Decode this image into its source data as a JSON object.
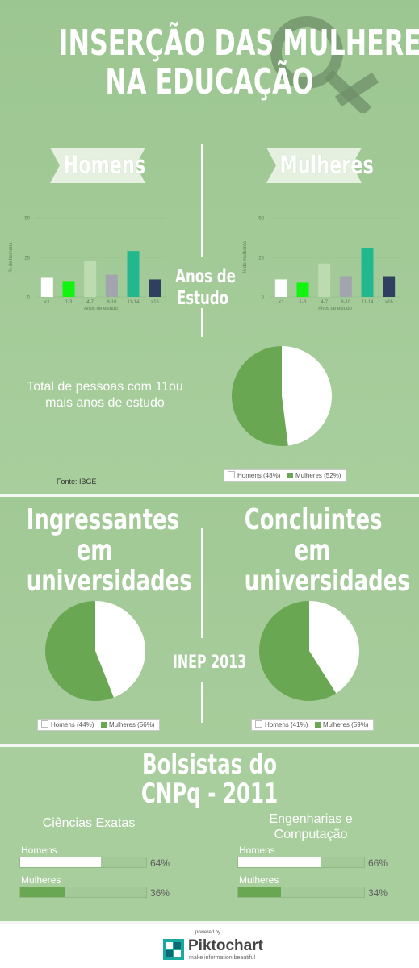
{
  "header": {
    "title_line1": "INSERÇÃO DAS MULHERES",
    "title_line2": "NA EDUCAÇÃO",
    "decor": "venus-symbol-icon"
  },
  "colors": {
    "background": "#a3c998",
    "dark_green": "#6aa753",
    "white": "#ffffff",
    "teal": "#22b78f",
    "navy": "#2e3f5f"
  },
  "section1": {
    "left_banner": "Homens",
    "right_banner": "Mulheres",
    "center_label_line1": "Anos de",
    "center_label_line2": "Estudo",
    "pie_caption": "Total de pessoas com 11ou mais anos de estudo",
    "source": "Fonte: IBGE"
  },
  "section2": {
    "left_title": [
      "Ingressantes",
      "em",
      "universidades"
    ],
    "right_title": [
      "Concluintes",
      "em",
      "universidades"
    ],
    "center_label": "INEP 2013"
  },
  "section3": {
    "title_line1": "Bolsistas do",
    "title_line2": "CNPq - 2011",
    "left_heading": "Ciências Exatas",
    "right_heading_line1": "Engenharias e",
    "right_heading_line2": "Computação"
  },
  "footer": {
    "powered_by": "powered by",
    "brand": "Piktochart",
    "tagline": "make information beautiful"
  },
  "chart_data": [
    {
      "type": "bar",
      "id": "homens-anos",
      "categories": [
        "<1",
        "1-3",
        "4-7",
        "8-10",
        "11-14",
        ">15"
      ],
      "values": [
        12,
        10,
        23,
        14,
        29,
        11
      ],
      "bar_colors": [
        "#ffffff",
        "#11f40f",
        "#bcdbb1",
        "#a2a5ad",
        "#22b78f",
        "#2e3f5f"
      ],
      "ylabel": "% de homens",
      "xlabel": "Anos de estudo",
      "yticks": [
        0,
        25,
        50
      ],
      "ylim": [
        0,
        50
      ],
      "grid": true
    },
    {
      "type": "bar",
      "id": "mulheres-anos",
      "categories": [
        "<1",
        "1-3",
        "4-7",
        "8-10",
        "11-14",
        ">16"
      ],
      "values": [
        11,
        9,
        21,
        13,
        31,
        13
      ],
      "bar_colors": [
        "#ffffff",
        "#11f40f",
        "#bcdbb1",
        "#a2a5ad",
        "#22b78f",
        "#2e3f5f"
      ],
      "ylabel": "% de mulheres",
      "xlabel": "Anos de estudo",
      "yticks": [
        0,
        25,
        50
      ],
      "ylim": [
        0,
        50
      ],
      "grid": true
    },
    {
      "type": "pie",
      "id": "total-11-mais",
      "labels": [
        "Homens (48%)",
        "Mulheres (52%)"
      ],
      "values": [
        48,
        52
      ],
      "colors": [
        "#ffffff",
        "#6aa753"
      ]
    },
    {
      "type": "pie",
      "id": "ingressantes",
      "labels": [
        "Homens (44%)",
        "Mulheres (56%)"
      ],
      "values": [
        44,
        56
      ],
      "colors": [
        "#ffffff",
        "#6aa753"
      ]
    },
    {
      "type": "pie",
      "id": "concluintes",
      "labels": [
        "Homens (41%)",
        "Mulheres (59%)"
      ],
      "values": [
        41,
        59
      ],
      "colors": [
        "#ffffff",
        "#6aa753"
      ]
    },
    {
      "type": "bar",
      "id": "bolsistas-exatas",
      "orientation": "horizontal",
      "categories": [
        "Homens",
        "Mulheres"
      ],
      "values": [
        64,
        36
      ],
      "value_labels": [
        "64%",
        "36%"
      ],
      "colors": [
        "#ffffff",
        "#6aa753"
      ]
    },
    {
      "type": "bar",
      "id": "bolsistas-engenharias",
      "orientation": "horizontal",
      "categories": [
        "Homens",
        "Mulheres"
      ],
      "values": [
        66,
        34
      ],
      "value_labels": [
        "66%",
        "34%"
      ],
      "colors": [
        "#ffffff",
        "#6aa753"
      ]
    }
  ]
}
